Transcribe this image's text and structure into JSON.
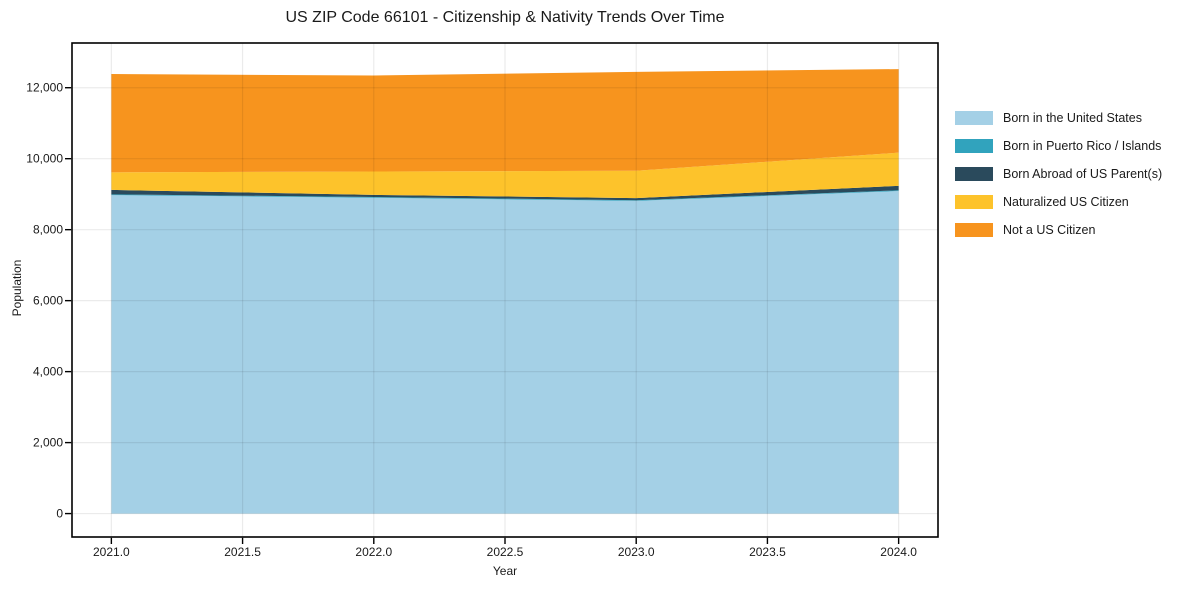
{
  "figure": {
    "background_color": "#ffffff"
  },
  "chart_data": {
    "type": "area",
    "title": "US ZIP Code 66101 - Citizenship & Nativity Trends Over Time",
    "xlabel": "Year",
    "ylabel": "Population",
    "x": [
      2021,
      2022,
      2023,
      2024
    ],
    "series": [
      {
        "name": "Born in the United States",
        "color": "#A4D0E6",
        "values": [
          8975,
          8900,
          8810,
          9090
        ]
      },
      {
        "name": "Born in Puerto Rico / Islands",
        "color": "#31A3BD",
        "values": [
          20,
          20,
          20,
          20
        ]
      },
      {
        "name": "Born Abroad of US Parent(s)",
        "color": "#2A4A5C",
        "values": [
          125,
          60,
          60,
          125
        ]
      },
      {
        "name": "Naturalized US Citizen",
        "color": "#FDC32B",
        "values": [
          495,
          660,
          770,
          935
        ]
      },
      {
        "name": "Not a US Citizen",
        "color": "#F7941E",
        "values": [
          2770,
          2705,
          2785,
          2355
        ]
      }
    ],
    "totals": [
      12385,
      12345,
      12445,
      12525
    ],
    "x_ticks": [
      2021.0,
      2021.5,
      2022.0,
      2022.5,
      2023.0,
      2023.5,
      2024.0
    ],
    "x_tick_labels": [
      "2021.0",
      "2021.5",
      "2022.0",
      "2022.5",
      "2023.0",
      "2023.5",
      "2024.0"
    ],
    "y_ticks": [
      0,
      2000,
      4000,
      6000,
      8000,
      10000,
      12000
    ],
    "y_tick_labels": [
      "0",
      "2,000",
      "4,000",
      "6,000",
      "8,000",
      "10,000",
      "12,000"
    ],
    "xlim": [
      2020.85,
      2024.15
    ],
    "ylim": [
      -660,
      13260
    ],
    "grid": true,
    "grid_color": "rgba(0,0,0,0.08)",
    "spine_color": "#000000",
    "legend_position": "right-outside"
  }
}
